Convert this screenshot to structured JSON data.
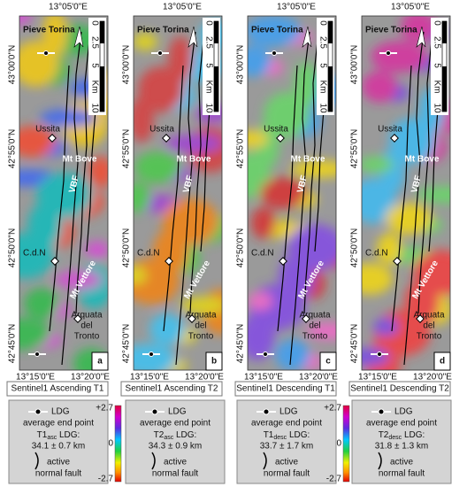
{
  "panels": [
    {
      "letter": "a",
      "caption": "Sentinel1 Ascending T1",
      "top_lon": "13°05'0\"E",
      "lat_labels": [
        "43°00'0\"N",
        "42°55'0\"N",
        "42°50'0\"N",
        "42°45'0\"N"
      ],
      "bottom_lon": [
        "13°15'0\"E",
        "13°20'0\"E"
      ],
      "places": [
        "Pieve Torina",
        "Ussita",
        "Mt Bove",
        "VBF",
        "C.d.N",
        "Mt Vettore",
        "Arquata",
        "del",
        "Tronto"
      ],
      "scale": [
        "0",
        "2.5",
        "5",
        "Km",
        "10"
      ]
    },
    {
      "letter": "b",
      "caption": "Sentinel1 Ascending T2",
      "top_lon": "13°05'0\"E",
      "lat_labels": [
        "43°00'0\"N",
        "42°55'0\"N",
        "42°50'0\"N",
        "42°45'0\"N"
      ],
      "bottom_lon": [
        "13°15'0\"E",
        "13°20'0\"E"
      ],
      "places": [
        "Pieve Torina",
        "Ussita",
        "Mt Bove",
        "VBF",
        "C.d.N",
        "Mt Vettore",
        "Arquata",
        "del",
        "Tronto"
      ],
      "scale": [
        "0",
        "2.5",
        "5",
        "Km",
        "10"
      ]
    },
    {
      "letter": "c",
      "caption": "Sentinel1 Descending T1",
      "top_lon": "13°05'0\"E",
      "lat_labels": [
        "43°00'0\"N",
        "42°55'0\"N",
        "42°50'0\"N",
        "42°45'0\"N"
      ],
      "bottom_lon": [
        "13°15'0\"E",
        "13°20'0\"E"
      ],
      "places": [
        "Pieve Torina",
        "Ussita",
        "Mt Bove",
        "VBF",
        "C.d.N",
        "Mt Vettore",
        "Arquata",
        "del",
        "Tronto"
      ],
      "scale": [
        "0",
        "2.5",
        "5",
        "Km",
        "10"
      ]
    },
    {
      "letter": "d",
      "caption": "Sentinel1 Descending T2",
      "top_lon": "13°05'0\"E",
      "lat_labels": [
        "43°00'0\"N",
        "42°55'0\"N",
        "42°50'0\"N",
        "42°45'0\"N"
      ],
      "bottom_lon": [
        "13°15'0\"E",
        "13°20'0\"E"
      ],
      "places": [
        "Pieve Torina",
        "Ussita",
        "Mt Bove",
        "VBF",
        "C.d.N",
        "Mt Vettore",
        "Arquata",
        "del",
        "Tronto"
      ],
      "scale": [
        "0",
        "2.5",
        "5",
        "Km",
        "10"
      ]
    }
  ],
  "legends": [
    {
      "ldg": "LDG",
      "avg": "average end point",
      "name_main": "T1",
      "name_sub": "asc",
      "name_rest": " LDG:",
      "length": "34.1 ± 0.7 km",
      "fault1": "active",
      "fault2": "normal fault"
    },
    {
      "ldg": "LDG",
      "avg": "average end point",
      "name_main": "T2",
      "name_sub": "asc",
      "name_rest": " LDG:",
      "length": "34.3 ± 0.9 km",
      "fault1": "active",
      "fault2": "normal fault"
    },
    {
      "ldg": "LDG",
      "avg": "average end point",
      "name_main": "T1",
      "name_sub": "desc",
      "name_rest": " LDG:",
      "length": "33.7 ± 1.7 km",
      "fault1": "active",
      "fault2": "normal fault"
    },
    {
      "ldg": "LDG",
      "avg": "average end point",
      "name_main": "T2",
      "name_sub": "desc",
      "name_rest": " LDG:",
      "length": "31.8 ± 1.3 km",
      "fault1": "active",
      "fault2": "normal fault"
    }
  ],
  "colorbars": [
    {
      "max": "+2.7",
      "mid": "0",
      "min": "-2.7"
    },
    {
      "max": "+2.7",
      "mid": "0",
      "min": "-2.7"
    }
  ]
}
